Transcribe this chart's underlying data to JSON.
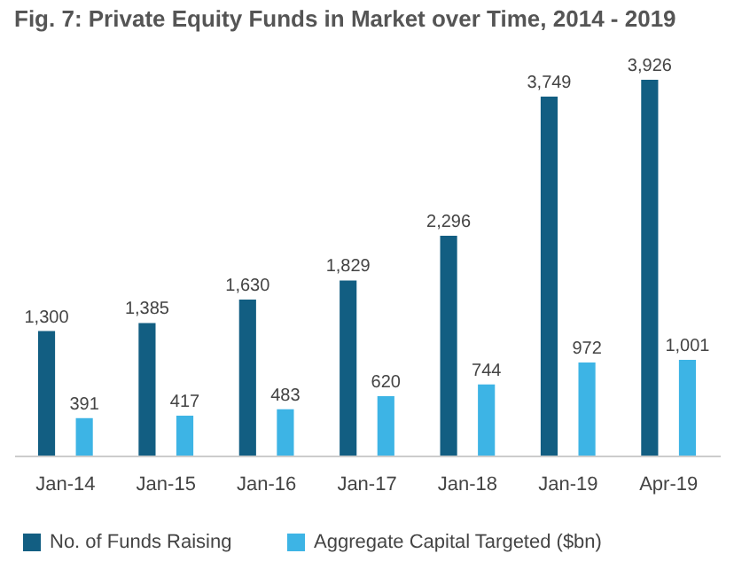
{
  "chart_data": {
    "type": "bar",
    "title": "Fig. 7: Private Equity Funds in Market over Time, 2014 - 2019",
    "categories": [
      "Jan-14",
      "Jan-15",
      "Jan-16",
      "Jan-17",
      "Jan-18",
      "Jan-19",
      "Apr-19"
    ],
    "series": [
      {
        "name": "No. of Funds Raising",
        "color": "#125e82",
        "values": [
          1300,
          1385,
          1630,
          1829,
          2296,
          3749,
          3926
        ],
        "value_labels": [
          "1,300",
          "1,385",
          "1,630",
          "1,829",
          "2,296",
          "3,749",
          "3,926"
        ]
      },
      {
        "name": "Aggregate Capital Targeted ($bn)",
        "color": "#3db4e5",
        "values": [
          391,
          417,
          483,
          620,
          744,
          972,
          1001
        ],
        "value_labels": [
          "391",
          "417",
          "483",
          "620",
          "744",
          "972",
          "1,001"
        ]
      }
    ],
    "legend": "bottom",
    "grid": false,
    "tick_labels": "x"
  }
}
